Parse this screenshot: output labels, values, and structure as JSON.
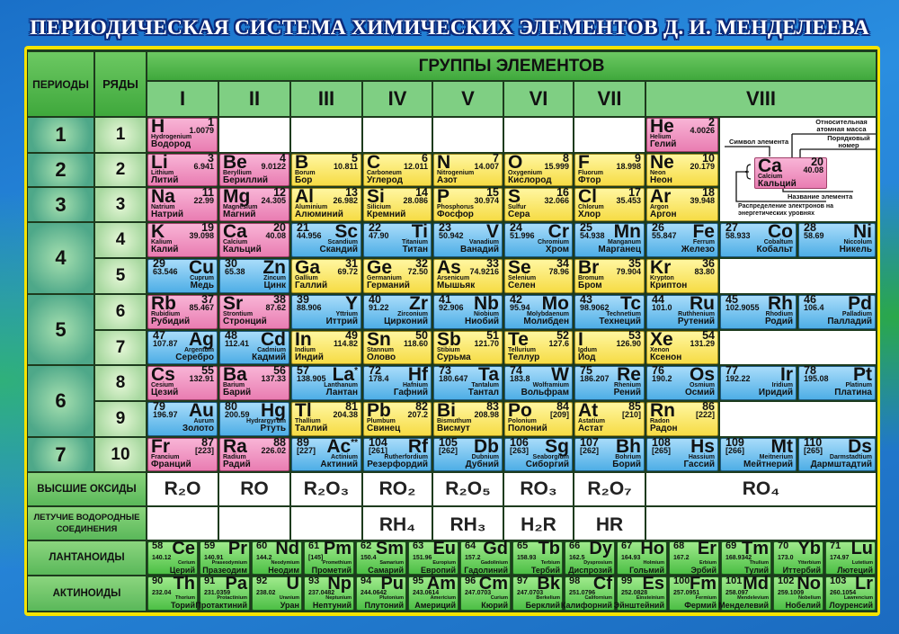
{
  "title": "ПЕРИОДИЧЕСКАЯ СИСТЕМА ХИМИЧЕСКИХ ЭЛЕМЕНТОВ Д. И. МЕНДЕЛЕЕВА",
  "headers": {
    "periods": "ПЕРИОДЫ",
    "rows": "РЯДЫ",
    "groups": "ГРУППЫ ЭЛЕМЕНТОВ",
    "group_numbers": [
      "I",
      "II",
      "III",
      "IV",
      "V",
      "VI",
      "VII",
      "VIII"
    ],
    "oxides": "ВЫСШИЕ ОКСИДЫ",
    "hydrides": "ЛЕТУЧИЕ ВОДОРОДНЫЕ СОЕДИНЕНИЯ",
    "lanthanides": "ЛАНТАНОИДЫ",
    "actinides": "АКТИНОИДЫ"
  },
  "periods": [
    "1",
    "2",
    "3",
    "4",
    "5",
    "6",
    "7"
  ],
  "block_colors": {
    "s": "#f29ac4",
    "p": "#f8e86a",
    "d": "#7cc6f2",
    "f": "#7ed46a"
  },
  "rows": [
    {
      "label": "1",
      "groups": [
        {
          "s": "H",
          "n": "1",
          "m": "1.0079",
          "l": "Hydrogenium",
          "r": "Водород",
          "b": "s"
        },
        null,
        null,
        null,
        null,
        null,
        null
      ],
      "viii": [
        {
          "s": "He",
          "n": "2",
          "m": "4.0026",
          "l": "Helium",
          "r": "Гелий",
          "b": "s"
        },
        null,
        null
      ]
    },
    {
      "label": "2",
      "groups": [
        {
          "s": "Li",
          "n": "3",
          "m": "6.941",
          "l": "Lithium",
          "r": "Литий",
          "b": "s"
        },
        {
          "s": "Be",
          "n": "4",
          "m": "9.0122",
          "l": "Beryllium",
          "r": "Бериллий",
          "b": "s"
        },
        {
          "s": "B",
          "n": "5",
          "m": "10.811",
          "l": "Borum",
          "r": "Бор",
          "b": "p"
        },
        {
          "s": "C",
          "n": "6",
          "m": "12.011",
          "l": "Carboneum",
          "r": "Углерод",
          "b": "p"
        },
        {
          "s": "N",
          "n": "7",
          "m": "14.007",
          "l": "Nitrogenium",
          "r": "Азот",
          "b": "p"
        },
        {
          "s": "O",
          "n": "8",
          "m": "15.999",
          "l": "Oxygenium",
          "r": "Кислород",
          "b": "p"
        },
        {
          "s": "F",
          "n": "9",
          "m": "18.998",
          "l": "Fluorum",
          "r": "Фтор",
          "b": "p"
        }
      ],
      "viii": [
        {
          "s": "Ne",
          "n": "10",
          "m": "20.179",
          "l": "Neon",
          "r": "Неон",
          "b": "p"
        },
        null,
        null
      ]
    },
    {
      "label": "3",
      "groups": [
        {
          "s": "Na",
          "n": "11",
          "m": "22.99",
          "l": "Natrium",
          "r": "Натрий",
          "b": "s"
        },
        {
          "s": "Mg",
          "n": "12",
          "m": "24.305",
          "l": "Magnesium",
          "r": "Магний",
          "b": "s"
        },
        {
          "s": "Al",
          "n": "13",
          "m": "26.982",
          "l": "Aluminium",
          "r": "Алюминий",
          "b": "p"
        },
        {
          "s": "Si",
          "n": "14",
          "m": "28.086",
          "l": "Silicium",
          "r": "Кремний",
          "b": "p"
        },
        {
          "s": "P",
          "n": "15",
          "m": "30.974",
          "l": "Phosphorus",
          "r": "Фосфор",
          "b": "p"
        },
        {
          "s": "S",
          "n": "16",
          "m": "32.066",
          "l": "Sulfur",
          "r": "Сера",
          "b": "p"
        },
        {
          "s": "Cl",
          "n": "17",
          "m": "35.453",
          "l": "Chlorum",
          "r": "Хлор",
          "b": "p"
        }
      ],
      "viii": [
        {
          "s": "Ar",
          "n": "18",
          "m": "39.948",
          "l": "Argon",
          "r": "Аргон",
          "b": "p"
        },
        null,
        null
      ]
    },
    {
      "label": "4",
      "groups": [
        {
          "s": "K",
          "n": "19",
          "m": "39.098",
          "l": "Kalium",
          "r": "Калий",
          "b": "s"
        },
        {
          "s": "Ca",
          "n": "20",
          "m": "40.08",
          "l": "Calcium",
          "r": "Кальций",
          "b": "s"
        },
        {
          "s": "Sc",
          "n": "21",
          "m": "44.956",
          "l": "Scandium",
          "r": "Скандий",
          "b": "d"
        },
        {
          "s": "Ti",
          "n": "22",
          "m": "47.90",
          "l": "Titanium",
          "r": "Титан",
          "b": "d"
        },
        {
          "s": "V",
          "n": "23",
          "m": "50.942",
          "l": "Vanadium",
          "r": "Ванадий",
          "b": "d"
        },
        {
          "s": "Cr",
          "n": "24",
          "m": "51.996",
          "l": "Chromium",
          "r": "Хром",
          "b": "d"
        },
        {
          "s": "Mn",
          "n": "25",
          "m": "54.938",
          "l": "Manganum",
          "r": "Марганец",
          "b": "d"
        }
      ],
      "viii": [
        {
          "s": "Fe",
          "n": "26",
          "m": "55.847",
          "l": "Ferrum",
          "r": "Железо",
          "b": "d"
        },
        {
          "s": "Co",
          "n": "27",
          "m": "58.933",
          "l": "Cobaltum",
          "r": "Кобальт",
          "b": "d"
        },
        {
          "s": "Ni",
          "n": "28",
          "m": "58.69",
          "l": "Niccolum",
          "r": "Никель",
          "b": "d"
        }
      ]
    },
    {
      "label": "5",
      "groups": [
        {
          "s": "Cu",
          "n": "29",
          "m": "63.546",
          "l": "Cuprum",
          "r": "Медь",
          "b": "d"
        },
        {
          "s": "Zn",
          "n": "30",
          "m": "65.38",
          "l": "Zincum",
          "r": "Цинк",
          "b": "d"
        },
        {
          "s": "Ga",
          "n": "31",
          "m": "69.72",
          "l": "Gallium",
          "r": "Галлий",
          "b": "p"
        },
        {
          "s": "Ge",
          "n": "32",
          "m": "72.50",
          "l": "Germanium",
          "r": "Германий",
          "b": "p"
        },
        {
          "s": "As",
          "n": "33",
          "m": "74.9216",
          "l": "Arsenicum",
          "r": "Мышьяк",
          "b": "p"
        },
        {
          "s": "Se",
          "n": "34",
          "m": "78.96",
          "l": "Selenium",
          "r": "Селен",
          "b": "p"
        },
        {
          "s": "Br",
          "n": "35",
          "m": "79.904",
          "l": "Bromum",
          "r": "Бром",
          "b": "p"
        }
      ],
      "viii": [
        {
          "s": "Kr",
          "n": "36",
          "m": "83.80",
          "l": "Krypton",
          "r": "Криптон",
          "b": "p"
        },
        null,
        null
      ]
    },
    {
      "label": "6",
      "groups": [
        {
          "s": "Rb",
          "n": "37",
          "m": "85.467",
          "l": "Rubidium",
          "r": "Рубидий",
          "b": "s"
        },
        {
          "s": "Sr",
          "n": "38",
          "m": "87.62",
          "l": "Strontium",
          "r": "Стронций",
          "b": "s"
        },
        {
          "s": "Y",
          "n": "39",
          "m": "88.906",
          "l": "Yttrium",
          "r": "Иттрий",
          "b": "d"
        },
        {
          "s": "Zr",
          "n": "40",
          "m": "91.22",
          "l": "Zirconium",
          "r": "Цирконий",
          "b": "d"
        },
        {
          "s": "Nb",
          "n": "41",
          "m": "92.906",
          "l": "Niobium",
          "r": "Ниобий",
          "b": "d"
        },
        {
          "s": "Mo",
          "n": "42",
          "m": "95.94",
          "l": "Molybdaenum",
          "r": "Молибден",
          "b": "d"
        },
        {
          "s": "Tc",
          "n": "43",
          "m": "98.9062",
          "l": "Technetium",
          "r": "Технеций",
          "b": "d"
        }
      ],
      "viii": [
        {
          "s": "Ru",
          "n": "44",
          "m": "101.0",
          "l": "Ruthhenium",
          "r": "Рутений",
          "b": "d"
        },
        {
          "s": "Rh",
          "n": "45",
          "m": "102.9055",
          "l": "Rhodium",
          "r": "Родий",
          "b": "d"
        },
        {
          "s": "Pd",
          "n": "46",
          "m": "106.4",
          "l": "Palladium",
          "r": "Палладий",
          "b": "d"
        }
      ]
    },
    {
      "label": "7",
      "groups": [
        {
          "s": "Ag",
          "n": "47",
          "m": "107.87",
          "l": "Argentum",
          "r": "Серебро",
          "b": "d"
        },
        {
          "s": "Cd",
          "n": "48",
          "m": "112.41",
          "l": "Cadmium",
          "r": "Кадмий",
          "b": "d"
        },
        {
          "s": "In",
          "n": "49",
          "m": "114.82",
          "l": "Indium",
          "r": "Индий",
          "b": "p"
        },
        {
          "s": "Sn",
          "n": "50",
          "m": "118.60",
          "l": "Stannum",
          "r": "Олово",
          "b": "p"
        },
        {
          "s": "Sb",
          "n": "51",
          "m": "121.70",
          "l": "Stibium",
          "r": "Сурьма",
          "b": "p"
        },
        {
          "s": "Te",
          "n": "52",
          "m": "127.6",
          "l": "Tellurium",
          "r": "Теллур",
          "b": "p"
        },
        {
          "s": "I",
          "n": "53",
          "m": "126.90",
          "l": "Iodum",
          "r": "Йод",
          "b": "p"
        }
      ],
      "viii": [
        {
          "s": "Xe",
          "n": "54",
          "m": "131.29",
          "l": "Xenon",
          "r": "Ксенон",
          "b": "p"
        },
        null,
        null
      ]
    },
    {
      "label": "8",
      "groups": [
        {
          "s": "Cs",
          "n": "55",
          "m": "132.91",
          "l": "Cesium",
          "r": "Цезий",
          "b": "s"
        },
        {
          "s": "Ba",
          "n": "56",
          "m": "137.33",
          "l": "Barium",
          "r": "Барий",
          "b": "s"
        },
        {
          "s": "La",
          "mark": "*",
          "n": "57",
          "m": "138.905",
          "l": "Lanthanum",
          "r": "Лантан",
          "b": "d"
        },
        {
          "s": "Hf",
          "n": "72",
          "m": "178.4",
          "l": "Hafnium",
          "r": "Гафний",
          "b": "d"
        },
        {
          "s": "Ta",
          "n": "73",
          "m": "180.647",
          "l": "Tantalum",
          "r": "Тантал",
          "b": "d"
        },
        {
          "s": "W",
          "n": "74",
          "m": "183.8",
          "l": "Wolframium",
          "r": "Вольфрам",
          "b": "d"
        },
        {
          "s": "Re",
          "n": "75",
          "m": "186.207",
          "l": "Rhenium",
          "r": "Рений",
          "b": "d"
        }
      ],
      "viii": [
        {
          "s": "Os",
          "n": "76",
          "m": "190.2",
          "l": "Osmium",
          "r": "Осмий",
          "b": "d"
        },
        {
          "s": "Ir",
          "n": "77",
          "m": "192.22",
          "l": "Iridium",
          "r": "Иридий",
          "b": "d"
        },
        {
          "s": "Pt",
          "n": "78",
          "m": "195.08",
          "l": "Platinum",
          "r": "Платина",
          "b": "d"
        }
      ]
    },
    {
      "label": "9",
      "groups": [
        {
          "s": "Au",
          "n": "79",
          "m": "196.97",
          "l": "Aurum",
          "r": "Золото",
          "b": "d"
        },
        {
          "s": "Hg",
          "n": "80",
          "m": "200.59",
          "l": "Hydrargyrum",
          "r": "Ртуть",
          "b": "d"
        },
        {
          "s": "Tl",
          "n": "81",
          "m": "204.38",
          "l": "Thallium",
          "r": "Таллий",
          "b": "p"
        },
        {
          "s": "Pb",
          "n": "82",
          "m": "207.2",
          "l": "Plumbum",
          "r": "Свинец",
          "b": "p"
        },
        {
          "s": "Bi",
          "n": "83",
          "m": "208.98",
          "l": "Bismuthum",
          "r": "Висмут",
          "b": "p"
        },
        {
          "s": "Po",
          "n": "84",
          "m": "[209]",
          "l": "Polonium",
          "r": "Полоний",
          "b": "p"
        },
        {
          "s": "At",
          "n": "85",
          "m": "[210]",
          "l": "Astatium",
          "r": "Астат",
          "b": "p"
        }
      ],
      "viii": [
        {
          "s": "Rn",
          "n": "86",
          "m": "[222]",
          "l": "Radon",
          "r": "Радон",
          "b": "p"
        },
        null,
        null
      ]
    },
    {
      "label": "10",
      "groups": [
        {
          "s": "Fr",
          "n": "87",
          "m": "[223]",
          "l": "Francium",
          "r": "Франций",
          "b": "s"
        },
        {
          "s": "Ra",
          "n": "88",
          "m": "226.02",
          "l": "Radium",
          "r": "Радий",
          "b": "s"
        },
        {
          "s": "Ac",
          "mark": "**",
          "n": "89",
          "m": "[227]",
          "l": "Actinium",
          "r": "Актиний",
          "b": "d"
        },
        {
          "s": "Rf",
          "n": "104",
          "m": "[261]",
          "l": "Rutherfordium",
          "r": "Резерфордий",
          "b": "d"
        },
        {
          "s": "Db",
          "n": "105",
          "m": "[262]",
          "l": "Dubnium",
          "r": "Дубний",
          "b": "d"
        },
        {
          "s": "Sg",
          "n": "106",
          "m": "[263]",
          "l": "Seaborgium",
          "r": "Сиборгий",
          "b": "d"
        },
        {
          "s": "Bh",
          "n": "107",
          "m": "[262]",
          "l": "Bohrium",
          "r": "Борий",
          "b": "d"
        }
      ],
      "viii": [
        {
          "s": "Hs",
          "n": "108",
          "m": "[265]",
          "l": "Hassium",
          "r": "Гассий",
          "b": "d"
        },
        {
          "s": "Mt",
          "n": "109",
          "m": "[266]",
          "l": "Meitnerium",
          "r": "Мейтнерий",
          "b": "d"
        },
        {
          "s": "Ds",
          "n": "110",
          "m": "[265]",
          "l": "Darmstadtium",
          "r": "Дармштадтий",
          "b": "d"
        }
      ]
    }
  ],
  "oxides": [
    "R₂O",
    "RO",
    "R₂O₃",
    "RO₂",
    "R₂O₅",
    "RO₃",
    "R₂O₇",
    "RO₄"
  ],
  "hydrides": [
    "",
    "",
    "",
    "RH₄",
    "RH₃",
    "H₂R",
    "HR",
    ""
  ],
  "lanthanides": [
    {
      "s": "Ce",
      "n": "58",
      "m": "140.12",
      "l": "Cerium",
      "r": "Церий",
      "b": "f"
    },
    {
      "s": "Pr",
      "n": "59",
      "m": "140.91",
      "l": "Praseodymium",
      "r": "Празеодим",
      "b": "f"
    },
    {
      "s": "Nd",
      "n": "60",
      "m": "144.2",
      "l": "Neodymium",
      "r": "Неодим",
      "b": "f"
    },
    {
      "s": "Pm",
      "n": "61",
      "m": "[145]",
      "l": "Promethium",
      "r": "Прометий",
      "b": "f"
    },
    {
      "s": "Sm",
      "n": "62",
      "m": "150.4",
      "l": "Samarium",
      "r": "Самарий",
      "b": "f"
    },
    {
      "s": "Eu",
      "n": "63",
      "m": "151.96",
      "l": "Europium",
      "r": "Европий",
      "b": "f"
    },
    {
      "s": "Gd",
      "n": "64",
      "m": "157.2",
      "l": "Gadolinium",
      "r": "Гадолиний",
      "b": "f"
    },
    {
      "s": "Tb",
      "n": "65",
      "m": "158.93",
      "l": "Terbium",
      "r": "Тербий",
      "b": "f"
    },
    {
      "s": "Dy",
      "n": "66",
      "m": "162.5",
      "l": "Dysprosium",
      "r": "Диспрозий",
      "b": "f"
    },
    {
      "s": "Ho",
      "n": "67",
      "m": "164.93",
      "l": "Holmium",
      "r": "Гольмий",
      "b": "f"
    },
    {
      "s": "Er",
      "n": "68",
      "m": "167.2",
      "l": "Erbium",
      "r": "Эрбий",
      "b": "f"
    },
    {
      "s": "Tm",
      "n": "69",
      "m": "168.9342",
      "l": "Thulium",
      "r": "Тулий",
      "b": "f"
    },
    {
      "s": "Yb",
      "n": "70",
      "m": "173.0",
      "l": "Ytterbium",
      "r": "Иттербий",
      "b": "f"
    },
    {
      "s": "Lu",
      "n": "71",
      "m": "174.97",
      "l": "Lutetium",
      "r": "Лютеций",
      "b": "f"
    }
  ],
  "actinides": [
    {
      "s": "Th",
      "n": "90",
      "m": "232.04",
      "l": "Thorium",
      "r": "Торий",
      "b": "f"
    },
    {
      "s": "Pa",
      "n": "91",
      "m": "231.0359",
      "l": "Protactinium",
      "r": "Протактиний",
      "b": "f"
    },
    {
      "s": "U",
      "n": "92",
      "m": "238.02",
      "l": "Uranium",
      "r": "Уран",
      "b": "f"
    },
    {
      "s": "Np",
      "n": "93",
      "m": "237.0482",
      "l": "Neptunium",
      "r": "Нептуний",
      "b": "f"
    },
    {
      "s": "Pu",
      "n": "94",
      "m": "244.0642",
      "l": "Plutonium",
      "r": "Плутоний",
      "b": "f"
    },
    {
      "s": "Am",
      "n": "95",
      "m": "243.0614",
      "l": "Americium",
      "r": "Америций",
      "b": "f"
    },
    {
      "s": "Cm",
      "n": "96",
      "m": "247.0703",
      "l": "Curium",
      "r": "Кюрий",
      "b": "f"
    },
    {
      "s": "Bk",
      "n": "97",
      "m": "247.0703",
      "l": "Berkelium",
      "r": "Берклий",
      "b": "f"
    },
    {
      "s": "Cf",
      "n": "98",
      "m": "251.0796",
      "l": "Californium",
      "r": "Калифорний",
      "b": "f"
    },
    {
      "s": "Es",
      "n": "99",
      "m": "252.0828",
      "l": "Einsteinium",
      "r": "Эйнштейний",
      "b": "f"
    },
    {
      "s": "Fm",
      "n": "100",
      "m": "257.0951",
      "l": "Fermium",
      "r": "Фермий",
      "b": "f"
    },
    {
      "s": "Md",
      "n": "101",
      "m": "258.097",
      "l": "Mendelevium",
      "r": "Менделевий",
      "b": "f"
    },
    {
      "s": "No",
      "n": "102",
      "m": "259.1009",
      "l": "Nobelium",
      "r": "Нобелий",
      "b": "f"
    },
    {
      "s": "Lr",
      "n": "103",
      "m": "260.1054",
      "l": "Lawrencium",
      "r": "Лоуренсий",
      "b": "f"
    }
  ],
  "legend": {
    "atomic_mass": "Относительная атомная масса",
    "symbol": "Символ элемента",
    "number": "Порядковый номер",
    "name": "Название элемента",
    "electrons": "Распределение электронов на энергетических уровнях",
    "example": {
      "s": "Ca",
      "n": "20",
      "m": "40.08",
      "l": "Calcium",
      "r": "Кальций",
      "b": "s"
    }
  }
}
